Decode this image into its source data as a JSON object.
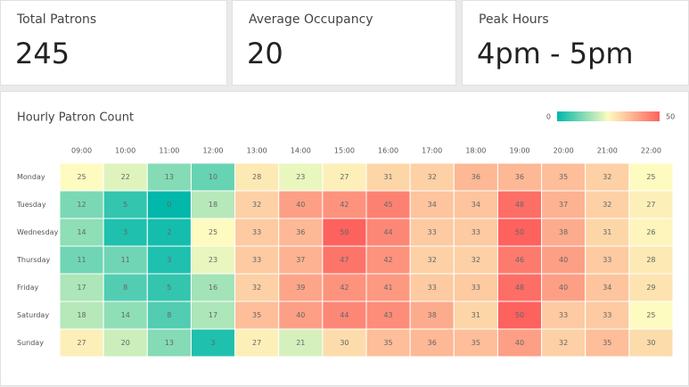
{
  "cards": [
    {
      "label": "Total Patrons",
      "value": 245
    },
    {
      "label": "Average Occupancy",
      "value": 20
    },
    {
      "label": "Peak Hours",
      "value": "4pm - 5pm"
    }
  ],
  "chart_data": {
    "type": "heatmap",
    "title": "Hourly Patron Count",
    "categories": [
      "09:00",
      "10:00",
      "11:00",
      "12:00",
      "13:00",
      "14:00",
      "15:00",
      "16:00",
      "17:00",
      "18:00",
      "19:00",
      "20:00",
      "21:00",
      "22:00"
    ],
    "rows": [
      "Monday",
      "Tuesday",
      "Wednesday",
      "Thursday",
      "Friday",
      "Saturday",
      "Sunday"
    ],
    "values": [
      [
        25,
        22,
        13,
        10,
        28,
        23,
        27,
        31,
        32,
        36,
        36,
        35,
        32,
        25
      ],
      [
        12,
        5,
        0,
        18,
        32,
        40,
        42,
        45,
        34,
        34,
        48,
        37,
        32,
        27
      ],
      [
        14,
        3,
        2,
        25,
        33,
        36,
        50,
        44,
        33,
        33,
        50,
        38,
        31,
        26
      ],
      [
        11,
        11,
        3,
        23,
        33,
        37,
        47,
        42,
        32,
        32,
        46,
        40,
        33,
        28
      ],
      [
        17,
        8,
        5,
        16,
        32,
        39,
        42,
        41,
        33,
        33,
        48,
        40,
        34,
        29
      ],
      [
        18,
        14,
        8,
        17,
        35,
        40,
        44,
        43,
        38,
        31,
        50,
        33,
        33,
        25
      ],
      [
        27,
        20,
        13,
        3,
        27,
        21,
        30,
        35,
        36,
        35,
        40,
        32,
        35,
        30
      ]
    ],
    "colorlim": [
      0,
      50
    ],
    "colors": [
      "#01b8aa",
      "#fdfbc0",
      "#fd625e"
    ]
  }
}
